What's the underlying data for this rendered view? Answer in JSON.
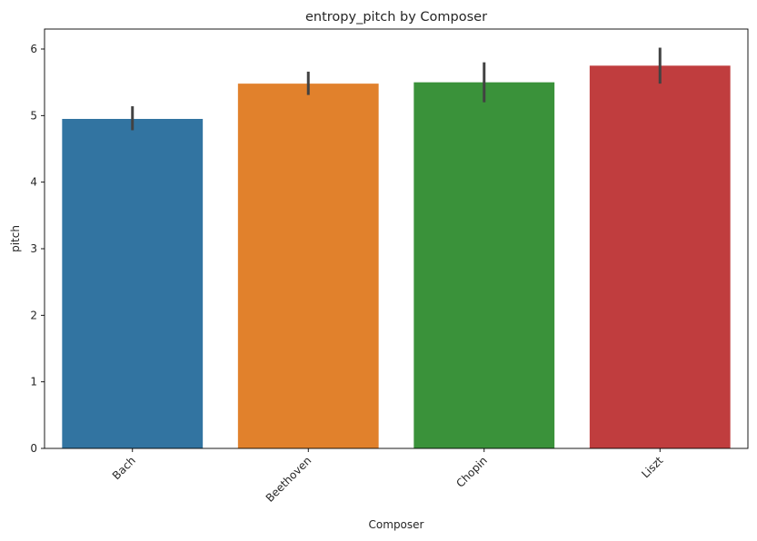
{
  "chart_data": {
    "type": "bar",
    "title": "entropy_pitch by Composer",
    "xlabel": "Composer",
    "ylabel": "pitch",
    "categories": [
      "Bach",
      "Beethoven",
      "Chopin",
      "Liszt"
    ],
    "values": [
      4.95,
      5.48,
      5.5,
      5.75
    ],
    "error_low": [
      4.78,
      5.31,
      5.2,
      5.48
    ],
    "error_high": [
      5.14,
      5.66,
      5.8,
      6.02
    ],
    "colors": [
      "#3274a1",
      "#e1812c",
      "#3a923a",
      "#c03d3e"
    ],
    "error_color": "#424242",
    "ylim": [
      0,
      6.3
    ],
    "yticks": [
      0,
      1,
      2,
      3,
      4,
      5,
      6
    ],
    "grid": false,
    "legend": "none",
    "xtick_rotation": 45
  }
}
